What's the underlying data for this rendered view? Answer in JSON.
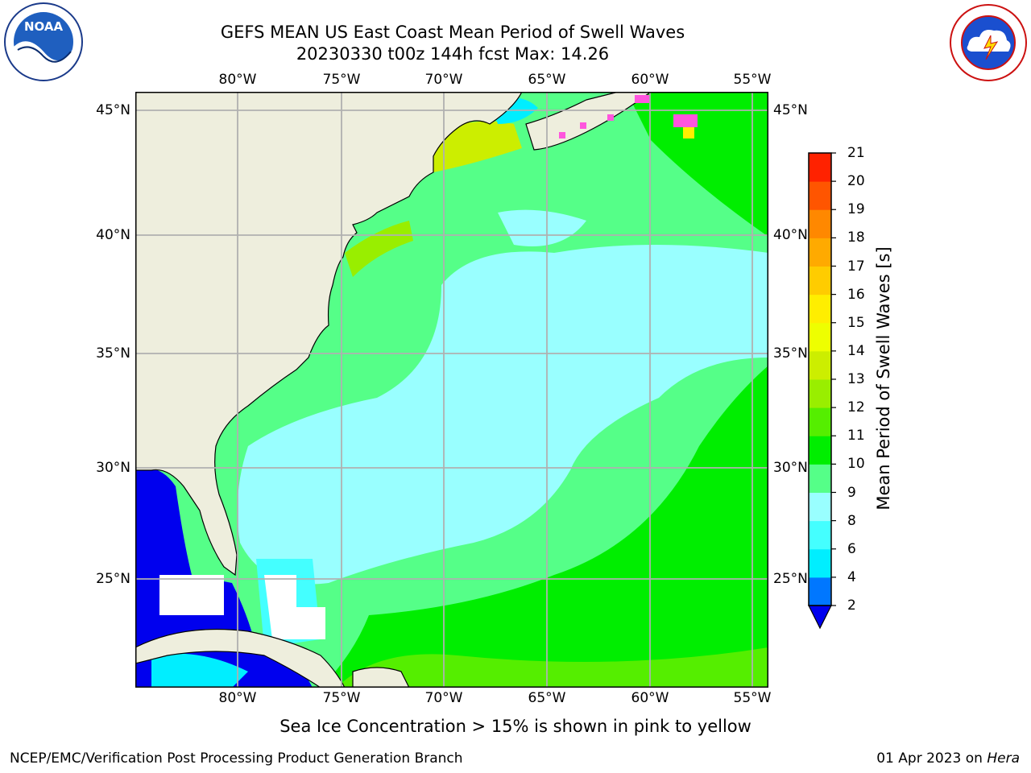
{
  "header": {
    "title_line1": "GEFS MEAN US East Coast Mean Period of Swell Waves",
    "title_line2": "20230330 t00z 144h fcst   Max: 14.26"
  },
  "logos": {
    "noaa": {
      "text": "NOAA",
      "ring_text": "NATIONAL OCEANIC AND ATMOSPHERIC ADMINISTRATION · U.S. DEPARTMENT OF COMMERCE"
    },
    "nws": {
      "ring_text": "NATIONAL WEATHER SERVICE"
    }
  },
  "map": {
    "lon_ticks": [
      "80°W",
      "75°W",
      "70°W",
      "65°W",
      "60°W",
      "55°W"
    ],
    "lat_ticks_left": [
      "45°N",
      "40°N",
      "35°N",
      "30°N",
      "25°N"
    ],
    "lat_ticks_right": [
      "45°N",
      "40°N",
      "35°N",
      "30°N",
      "25°N"
    ],
    "lon_range": [
      -85,
      -54
    ],
    "lat_range": [
      20,
      46
    ],
    "land_color": "#eeeedd",
    "grid": true
  },
  "colorbar": {
    "title": "Mean Period of Swell Waves [s]",
    "labels": [
      "21",
      "20",
      "19",
      "18",
      "17",
      "16",
      "15",
      "14",
      "13",
      "12",
      "11",
      "10",
      "9",
      "8",
      "6",
      "4",
      "2"
    ],
    "colors": [
      "#0000ee",
      "#0077ff",
      "#00eeff",
      "#44ffff",
      "#99ffff",
      "#55ff88",
      "#00ee00",
      "#55ee00",
      "#99ee00",
      "#ccee00",
      "#eeff00",
      "#ffee00",
      "#ffcc00",
      "#ffaa00",
      "#ff8800",
      "#ff5500",
      "#ff2200",
      "#ff0000"
    ]
  },
  "chart_data": {
    "type": "heatmap",
    "title": "GEFS MEAN US East Coast Mean Period of Swell Waves",
    "subtitle": "20230330 t00z 144h fcst   Max: 14.26",
    "colorbar_label": "Mean Period of Swell Waves [s]",
    "levels": [
      2,
      4,
      6,
      8,
      9,
      10,
      11,
      12,
      13,
      14,
      15,
      16,
      17,
      18,
      19,
      20,
      21
    ],
    "max_value": 14.26
  },
  "notes": {
    "sea_ice": "Sea Ice Concentration > 15% is shown in pink to yellow"
  },
  "footer": {
    "left": "NCEP/EMC/Verification Post Processing Product Generation Branch",
    "date": "01 Apr 2023 on ",
    "host": "Hera"
  }
}
